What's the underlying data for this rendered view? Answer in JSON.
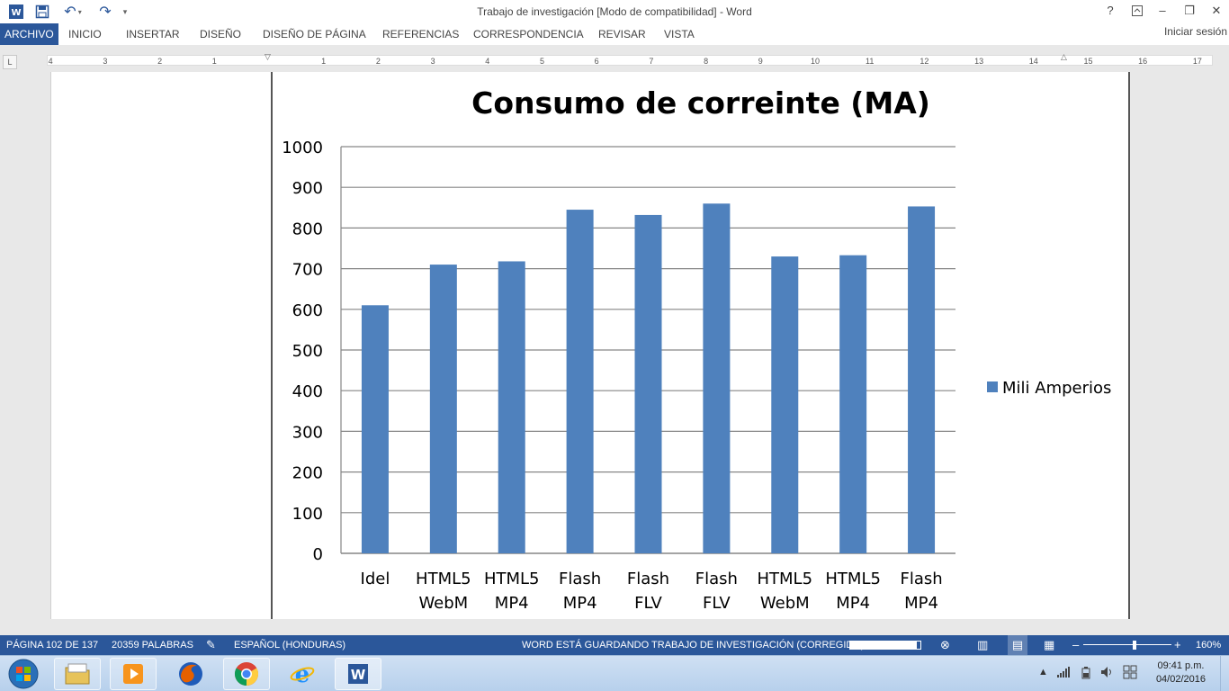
{
  "window": {
    "title": "Trabajo de investigación [Modo de compatibilidad] - Word",
    "help": "?",
    "minimize": "–",
    "restore": "❐",
    "close": "✕"
  },
  "ribbon": {
    "tabs": [
      {
        "label": "ARCHIVO",
        "active": true
      },
      {
        "label": "INICIO"
      },
      {
        "label": "INSERTAR"
      },
      {
        "label": "DISEÑO"
      },
      {
        "label": "DISEÑO DE PÁGINA"
      },
      {
        "label": "REFERENCIAS"
      },
      {
        "label": "CORRESPONDENCIA"
      },
      {
        "label": "REVISAR"
      },
      {
        "label": "VISTA"
      }
    ],
    "signin": "Iniciar sesión"
  },
  "ruler": {
    "labels": [
      "4",
      "3",
      "2",
      "1",
      "1",
      "2",
      "3",
      "4",
      "5",
      "6",
      "7",
      "8",
      "9",
      "10",
      "11",
      "12",
      "13",
      "14",
      "15",
      "16",
      "17"
    ]
  },
  "chart_data": {
    "type": "bar",
    "title": "Consumo de correinte (MA)",
    "categories": [
      [
        "Idel"
      ],
      [
        "HTML5",
        "WebM"
      ],
      [
        "HTML5",
        "MP4"
      ],
      [
        "Flash",
        "MP4"
      ],
      [
        "Flash",
        "FLV"
      ],
      [
        "Flash",
        "FLV"
      ],
      [
        "HTML5",
        "WebM"
      ],
      [
        "HTML5",
        "MP4"
      ],
      [
        "Flash",
        "MP4"
      ]
    ],
    "series": [
      {
        "name": "Mili Amperios",
        "color": "#4f81bd",
        "values": [
          610,
          710,
          718,
          845,
          832,
          860,
          730,
          733,
          853
        ]
      }
    ],
    "ylim": [
      0,
      1000
    ],
    "yticks": [
      0,
      100,
      200,
      300,
      400,
      500,
      600,
      700,
      800,
      900,
      1000
    ],
    "grid": true,
    "legend": "right"
  },
  "statusbar": {
    "page": "PÁGINA 102 DE 137",
    "words": "20359 PALABRAS",
    "language": "ESPAÑOL (HONDURAS)",
    "saving": "WORD ESTÁ GUARDANDO TRABAJO DE INVESTIGACIÓN (CORREGIDO):",
    "progress": 0.95,
    "zoom": "160%"
  },
  "taskbar": {
    "time": "09:41 p.m.",
    "date": "04/02/2016"
  },
  "colors": {
    "accent": "#2b579a",
    "bar": "#4f81bd"
  }
}
